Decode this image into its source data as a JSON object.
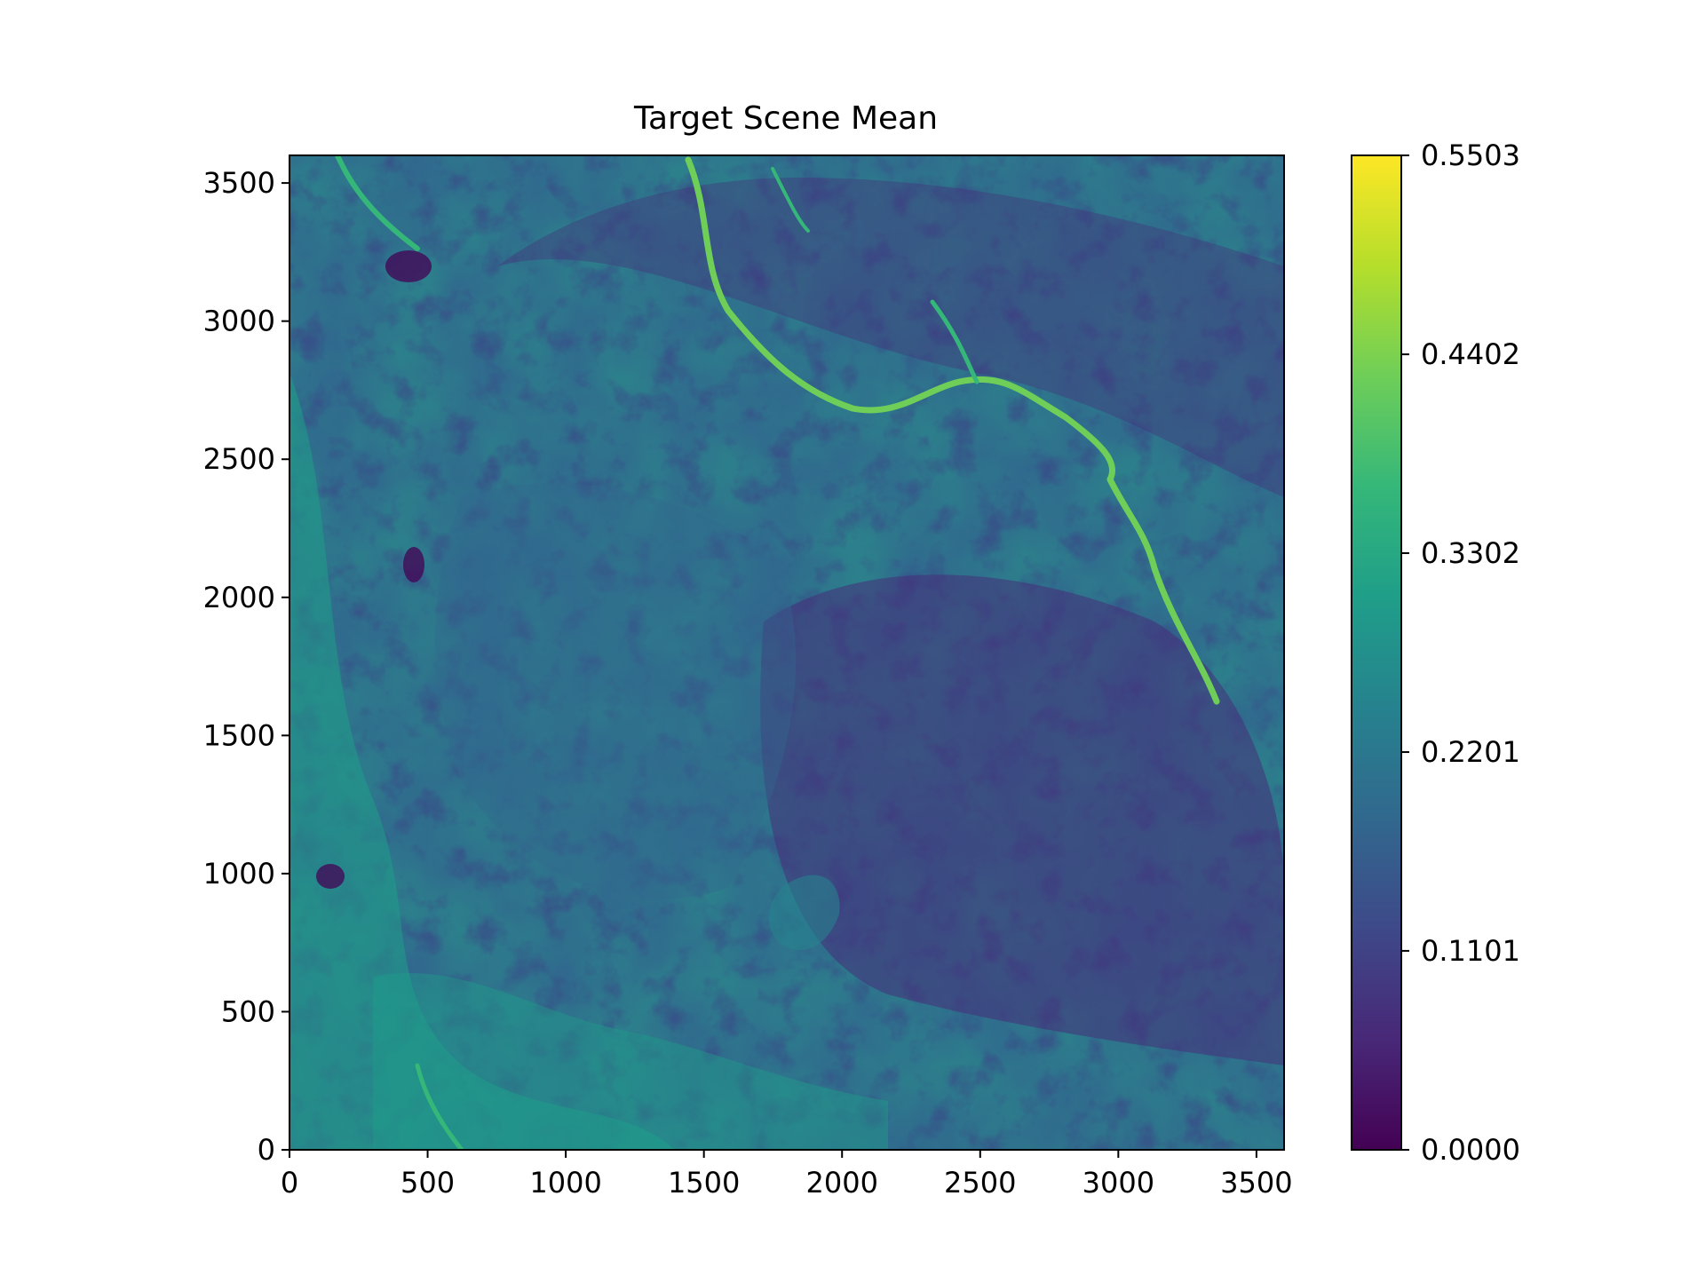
{
  "chart_data": {
    "type": "heatmap",
    "title": "Target Scene Mean",
    "xlabel": "",
    "ylabel": "",
    "xlim": [
      0,
      3600
    ],
    "ylim": [
      0,
      3600
    ],
    "xticks": [
      {
        "value": 0,
        "label": "0"
      },
      {
        "value": 500,
        "label": "500"
      },
      {
        "value": 1000,
        "label": "1000"
      },
      {
        "value": 1500,
        "label": "1500"
      },
      {
        "value": 2000,
        "label": "2000"
      },
      {
        "value": 2500,
        "label": "2500"
      },
      {
        "value": 3000,
        "label": "3000"
      },
      {
        "value": 3500,
        "label": "3500"
      }
    ],
    "yticks": [
      {
        "value": 0,
        "label": "0"
      },
      {
        "value": 500,
        "label": "500"
      },
      {
        "value": 1000,
        "label": "1000"
      },
      {
        "value": 1500,
        "label": "1500"
      },
      {
        "value": 2000,
        "label": "2000"
      },
      {
        "value": 2500,
        "label": "2500"
      },
      {
        "value": 3000,
        "label": "3000"
      },
      {
        "value": 3500,
        "label": "3500"
      }
    ],
    "colorbar": {
      "colormap": "viridis",
      "range": [
        0.0,
        0.5503
      ],
      "ticks": [
        {
          "value": 0.0,
          "label": "0.0000"
        },
        {
          "value": 0.1101,
          "label": "0.1101"
        },
        {
          "value": 0.2201,
          "label": "0.2201"
        },
        {
          "value": 0.3302,
          "label": "0.3302"
        },
        {
          "value": 0.4402,
          "label": "0.4402"
        },
        {
          "value": 0.5503,
          "label": "0.5503"
        }
      ]
    },
    "colormap_stops": [
      "#440154",
      "#482878",
      "#3e4989",
      "#31688e",
      "#26828e",
      "#1f9e89",
      "#35b779",
      "#6ece58",
      "#b5de2b",
      "#fde725"
    ],
    "grid": false
  }
}
